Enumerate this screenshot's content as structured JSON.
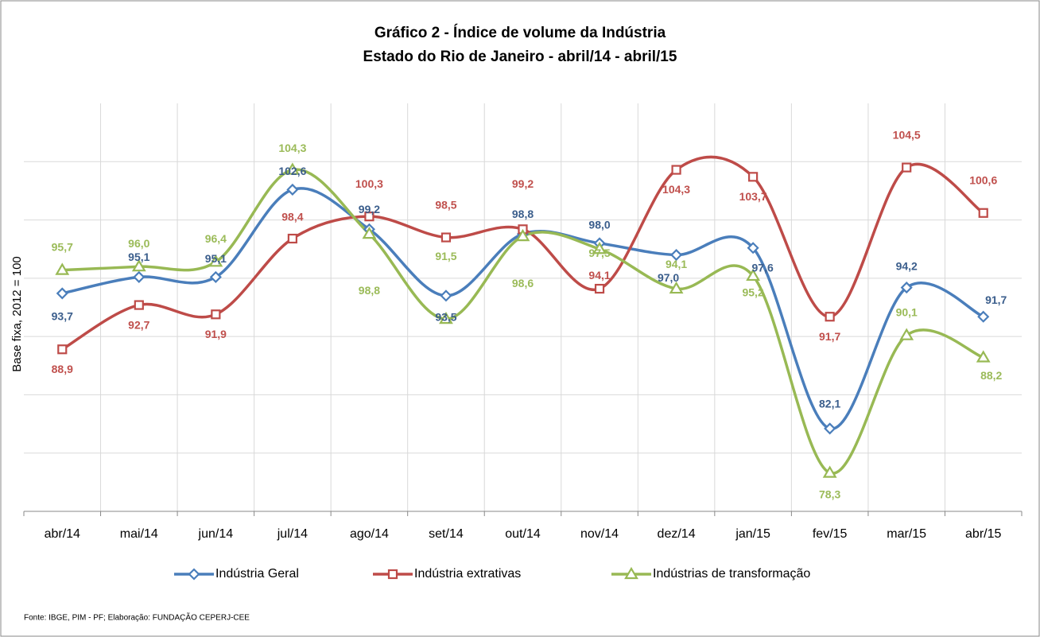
{
  "chart_data": {
    "type": "line",
    "title": "Gráfico 2 - Índice de volume da Indústria",
    "subtitle": "Estado do Rio de Janeiro - abril/14 - abril/15",
    "y_label": "Base fixa, 2012 = 100",
    "source": "Fonte: IBGE, PIM - PF; Elaboração: FUNDAÇÃO CEPERJ-CEE",
    "categories": [
      "abr/14",
      "mai/14",
      "jun/14",
      "jul/14",
      "ago/14",
      "set/14",
      "out/14",
      "nov/14",
      "dez/14",
      "jan/15",
      "fev/15",
      "mar/15",
      "abr/15"
    ],
    "ylim": [
      75,
      110
    ],
    "yticks": [
      75,
      80,
      85,
      90,
      95,
      100,
      105
    ],
    "grid": true,
    "smooth": true,
    "series": [
      {
        "name": "Indústria Geral",
        "color": "#4a7ebb",
        "label_color": "#3b5e8c",
        "marker": "diamond",
        "values": [
          93.7,
          95.1,
          95.1,
          102.6,
          99.2,
          93.5,
          98.8,
          98.0,
          97.0,
          97.6,
          82.1,
          94.2,
          91.7
        ],
        "value_labels": [
          "93,7",
          "95,1",
          "95,1",
          "102,6",
          "99,2",
          "93,5",
          "98,8",
          "98,0",
          "97,0",
          "97,6",
          "82,1",
          "94,2",
          "91,7"
        ]
      },
      {
        "name": "Indústria extrativas",
        "color": "#be4b48",
        "label_color": "#c0504d",
        "marker": "square",
        "values": [
          88.9,
          92.7,
          91.9,
          98.4,
          100.3,
          98.5,
          99.2,
          94.1,
          104.3,
          103.7,
          91.7,
          104.5,
          100.6
        ],
        "value_labels": [
          "88,9",
          "92,7",
          "91,9",
          "98,4",
          "100,3",
          "98,5",
          "99,2",
          "94,1",
          "104,3",
          "103,7",
          "91,7",
          "104,5",
          "100,6"
        ]
      },
      {
        "name": "Indústrias de transformação",
        "color": "#98b954",
        "label_color": "#9bbb59",
        "marker": "triangle",
        "values": [
          95.7,
          96.0,
          96.4,
          104.3,
          98.8,
          91.5,
          98.6,
          97.5,
          94.1,
          95.2,
          78.3,
          90.1,
          88.2
        ],
        "value_labels": [
          "95,7",
          "96,0",
          "96,4",
          "104,3",
          "98,8",
          "91,5",
          "98,6",
          "97,5",
          "94,1",
          "95,2",
          "78,3",
          "90,1",
          "88,2"
        ]
      }
    ]
  }
}
